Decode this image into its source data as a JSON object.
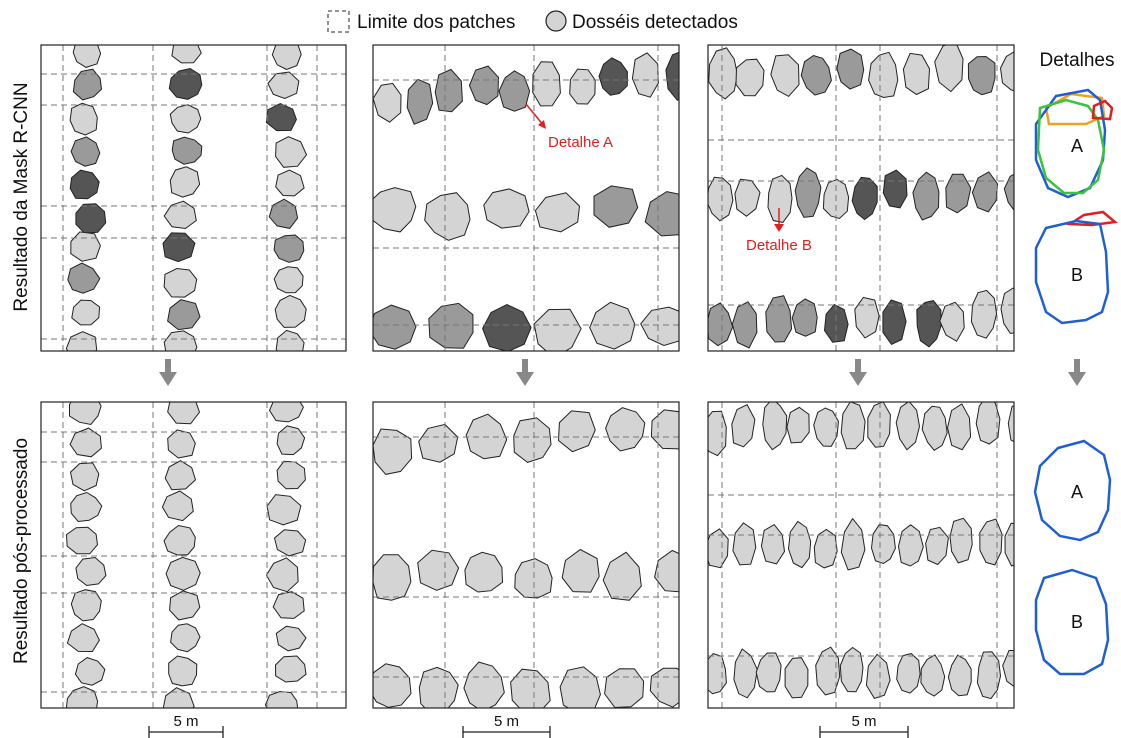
{
  "legend": {
    "patch_label": "Limite dos patches",
    "canopy_label": "Dosséis detectados"
  },
  "row_labels": {
    "top": "Resultado da Mask R-CNN",
    "bottom": "Resultado pós-processado"
  },
  "details_title": "Detalhes",
  "annotations": {
    "detail_a": "Detalhe A",
    "detail_b": "Detalhe B"
  },
  "detail_letters": {
    "a": "A",
    "b": "B"
  },
  "scale_label": "5 m",
  "colors": {
    "canopy_fill": "#d4d4d4",
    "overlap_mid": "#9a9a9a",
    "overlap_dark": "#555555",
    "annotation": "#e02020",
    "outline_blue": "#1f5fd6",
    "outline_green": "#3cc23c",
    "outline_orange": "#f0a020",
    "outline_red": "#e02020",
    "arrow": "#888888"
  },
  "icons": [
    "dashed-square-icon",
    "canopy-circle-icon",
    "down-arrow-icon"
  ]
}
